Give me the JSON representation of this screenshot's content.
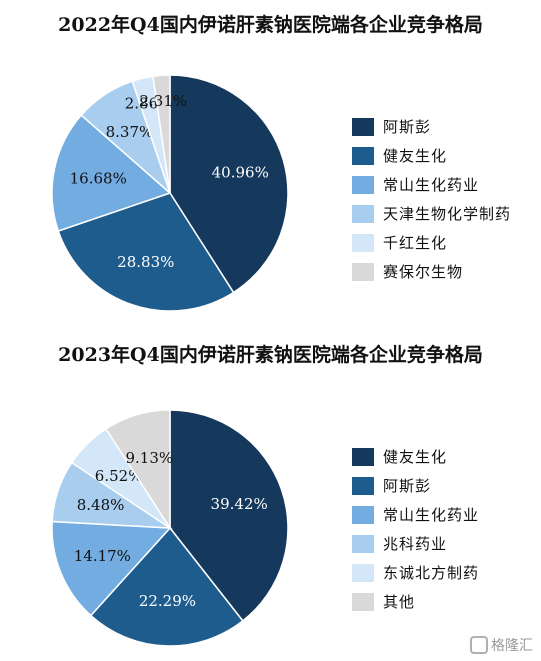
{
  "chart_data": [
    {
      "type": "pie",
      "title": "2022年Q4国内伊诺肝素钠医院端各企业竞争格局",
      "legend_position": "right",
      "series": [
        {
          "name": "阿斯彭",
          "value": 40.96,
          "label": "40.96%",
          "color": "#15395c"
        },
        {
          "name": "健友生化",
          "value": 28.83,
          "label": "28.83%",
          "color": "#1f5c8e"
        },
        {
          "name": "常山生化药业",
          "value": 16.68,
          "label": "16.68%",
          "color": "#72ace1"
        },
        {
          "name": "天津生物化学制药",
          "value": 8.37,
          "label": "8.37%",
          "color": "#a8cdef"
        },
        {
          "name": "千红生化",
          "value": 2.86,
          "label": "2.86%",
          "color": "#d3e7f9"
        },
        {
          "name": "赛保尔生物",
          "value": 2.31,
          "label": "2.31%",
          "color": "#d9d9d9"
        }
      ]
    },
    {
      "type": "pie",
      "title": "2023年Q4国内伊诺肝素钠医院端各企业竞争格局",
      "legend_position": "right",
      "series": [
        {
          "name": "健友生化",
          "value": 39.42,
          "label": "39.42%",
          "color": "#15395c"
        },
        {
          "name": "阿斯彭",
          "value": 22.29,
          "label": "22.29%",
          "color": "#1f5c8e"
        },
        {
          "name": "常山生化药业",
          "value": 14.17,
          "label": "14.17%",
          "color": "#72ace1"
        },
        {
          "name": "兆科药业",
          "value": 8.48,
          "label": "8.48%",
          "color": "#a8cdef"
        },
        {
          "name": "东诚北方制药",
          "value": 6.52,
          "label": "6.52%",
          "color": "#d3e7f9"
        },
        {
          "name": "其他",
          "value": 9.13,
          "label": "9.13%",
          "color": "#d9d9d9"
        }
      ]
    }
  ],
  "watermark": {
    "text": "格隆汇",
    "icon": "gelonghui-logo-icon"
  }
}
